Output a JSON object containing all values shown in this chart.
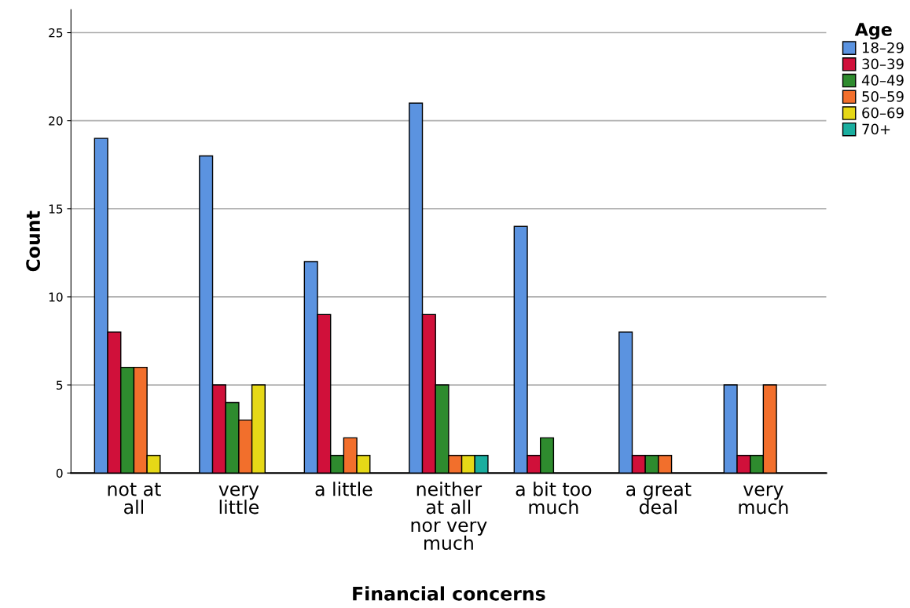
{
  "chart_data": {
    "type": "bar",
    "xlabel": "Financial concerns",
    "ylabel": "Count",
    "legend_title": "Age",
    "legend": "top right",
    "grid": "y",
    "categories": [
      "not at\nall",
      "very\nlittle",
      "a little",
      "neither\nat all\nnor very\nmuch",
      "a bit too\nmuch",
      "a great\ndeal",
      "very\nmuch"
    ],
    "ylim": [
      0,
      26.3
    ],
    "yticks": [
      0,
      5,
      10,
      15,
      20,
      25
    ],
    "series": [
      {
        "name": "18–29",
        "color": "#5b93e0",
        "values": [
          19,
          18,
          12,
          21,
          14,
          8,
          5
        ]
      },
      {
        "name": "30–39",
        "color": "#d0103a",
        "values": [
          8,
          5,
          9,
          9,
          1,
          1,
          1
        ]
      },
      {
        "name": "40–49",
        "color": "#2e8b2e",
        "values": [
          6,
          4,
          1,
          5,
          2,
          1,
          1
        ]
      },
      {
        "name": "50–59",
        "color": "#f26f2c",
        "values": [
          6,
          3,
          2,
          1,
          null,
          1,
          5
        ]
      },
      {
        "name": "60–69",
        "color": "#e6d817",
        "values": [
          1,
          5,
          1,
          1,
          null,
          null,
          null
        ]
      },
      {
        "name": "70+",
        "color": "#1aae9f",
        "values": [
          null,
          null,
          null,
          1,
          null,
          null,
          null
        ]
      }
    ]
  }
}
